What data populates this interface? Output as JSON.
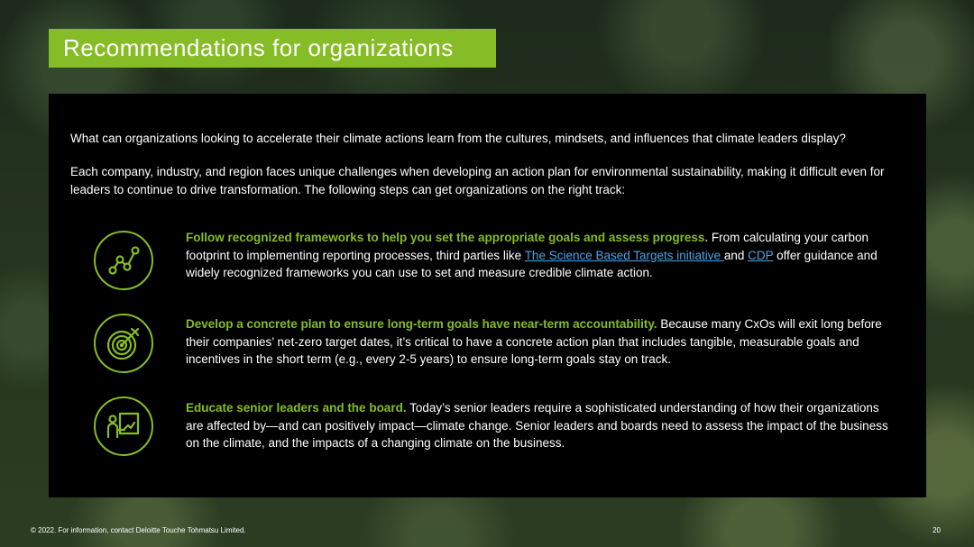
{
  "title": "Recommendations for organizations",
  "intro": {
    "question": "What can organizations looking to accelerate their climate actions learn from the cultures, mindsets, and influences that climate leaders display?",
    "context": "Each company, industry, and region faces unique challenges when developing an action plan for environmental sustainability, making it difficult even for leaders to continue to drive transformation. The following steps can get organizations on the right track:"
  },
  "items": [
    {
      "icon": "network-graph-icon",
      "heading": "Follow recognized frameworks to help you set the appropriate goals and assess progress.",
      "text_a": " From calculating your carbon footprint to implementing reporting processes, third parties like ",
      "link_1": "The Science Based Targets initiative ",
      "text_b": "and ",
      "link_2": "CDP",
      "text_c": " offer guidance and widely recognized frameworks you can use to set and measure credible climate action."
    },
    {
      "icon": "target-arrow-icon",
      "heading": "Develop a concrete plan to ensure long-term goals have near-term accountability.",
      "text": " Because many CxOs will exit long before their companies’ net-zero target dates, it’s critical to have a concrete action plan that includes tangible, measurable goals and incentives in the short term (e.g., every 2-5 years) to ensure long-term goals stay on track."
    },
    {
      "icon": "presenter-board-icon",
      "heading": "Educate senior leaders and the board.",
      "text": " Today’s senior leaders require a sophisticated understanding of how their organizations are affected by—and can positively impact—climate change. Senior leaders and boards need to assess the impact of the business on the climate, and the impacts of a changing climate on the business."
    }
  ],
  "footer": {
    "copyright": "© 2022. For information, contact Deloitte Touche Tohmatsu Limited.",
    "page_number": "20"
  },
  "colors": {
    "accent": "#86bc25",
    "link": "#4aa3e8",
    "panel": "#000000"
  }
}
